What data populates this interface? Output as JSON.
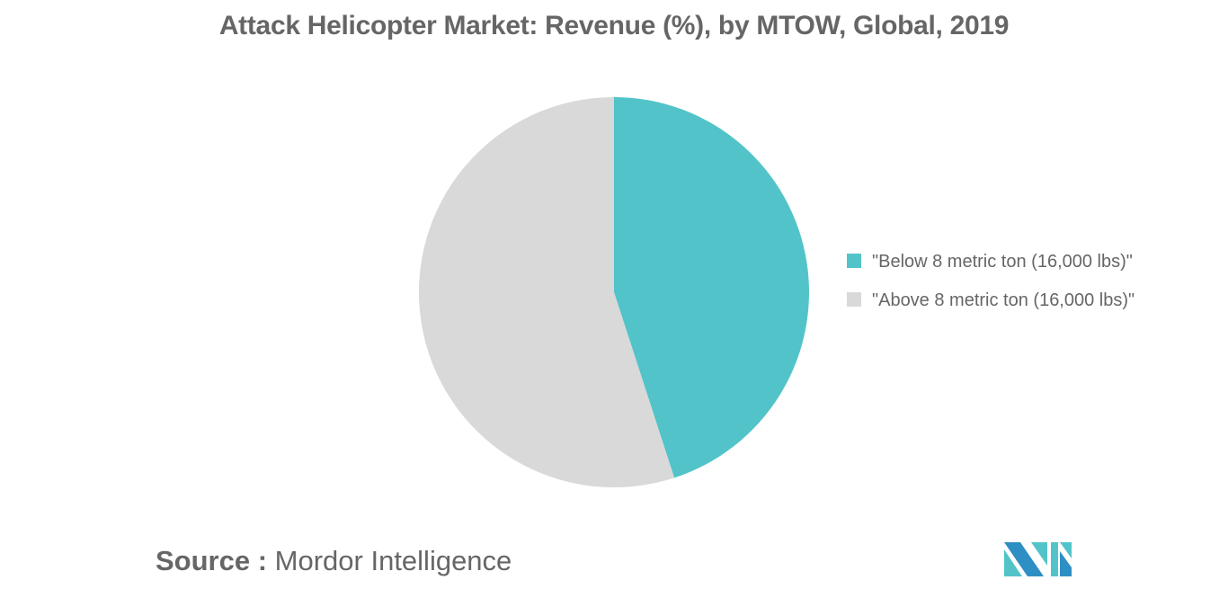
{
  "chart_data": {
    "type": "pie",
    "title": "Attack Helicopter Market: Revenue (%), by MTOW, Global, 2019",
    "categories": [
      "\"Below 8 metric ton (16,000 lbs)\"",
      "\"Above 8 metric ton (16,000 lbs)\""
    ],
    "values": [
      45,
      55
    ],
    "colors": [
      "#52C4C9",
      "#D9D9D9"
    ],
    "start_angle_deg": 0,
    "direction": "clockwise",
    "legend_position": "right",
    "data_labels": false
  },
  "header": {
    "title": "Attack Helicopter Market: Revenue (%), by MTOW, Global, 2019"
  },
  "legend": {
    "items": [
      {
        "label": "\"Below 8 metric ton (16,000 lbs)\"",
        "color": "#52C4C9"
      },
      {
        "label": "\"Above 8 metric ton (16,000 lbs)\"",
        "color": "#D9D9D9"
      }
    ]
  },
  "footer": {
    "source_label": "Source :",
    "source_name": "Mordor Intelligence",
    "logo_icon": "mordor-intelligence-logo-icon"
  }
}
